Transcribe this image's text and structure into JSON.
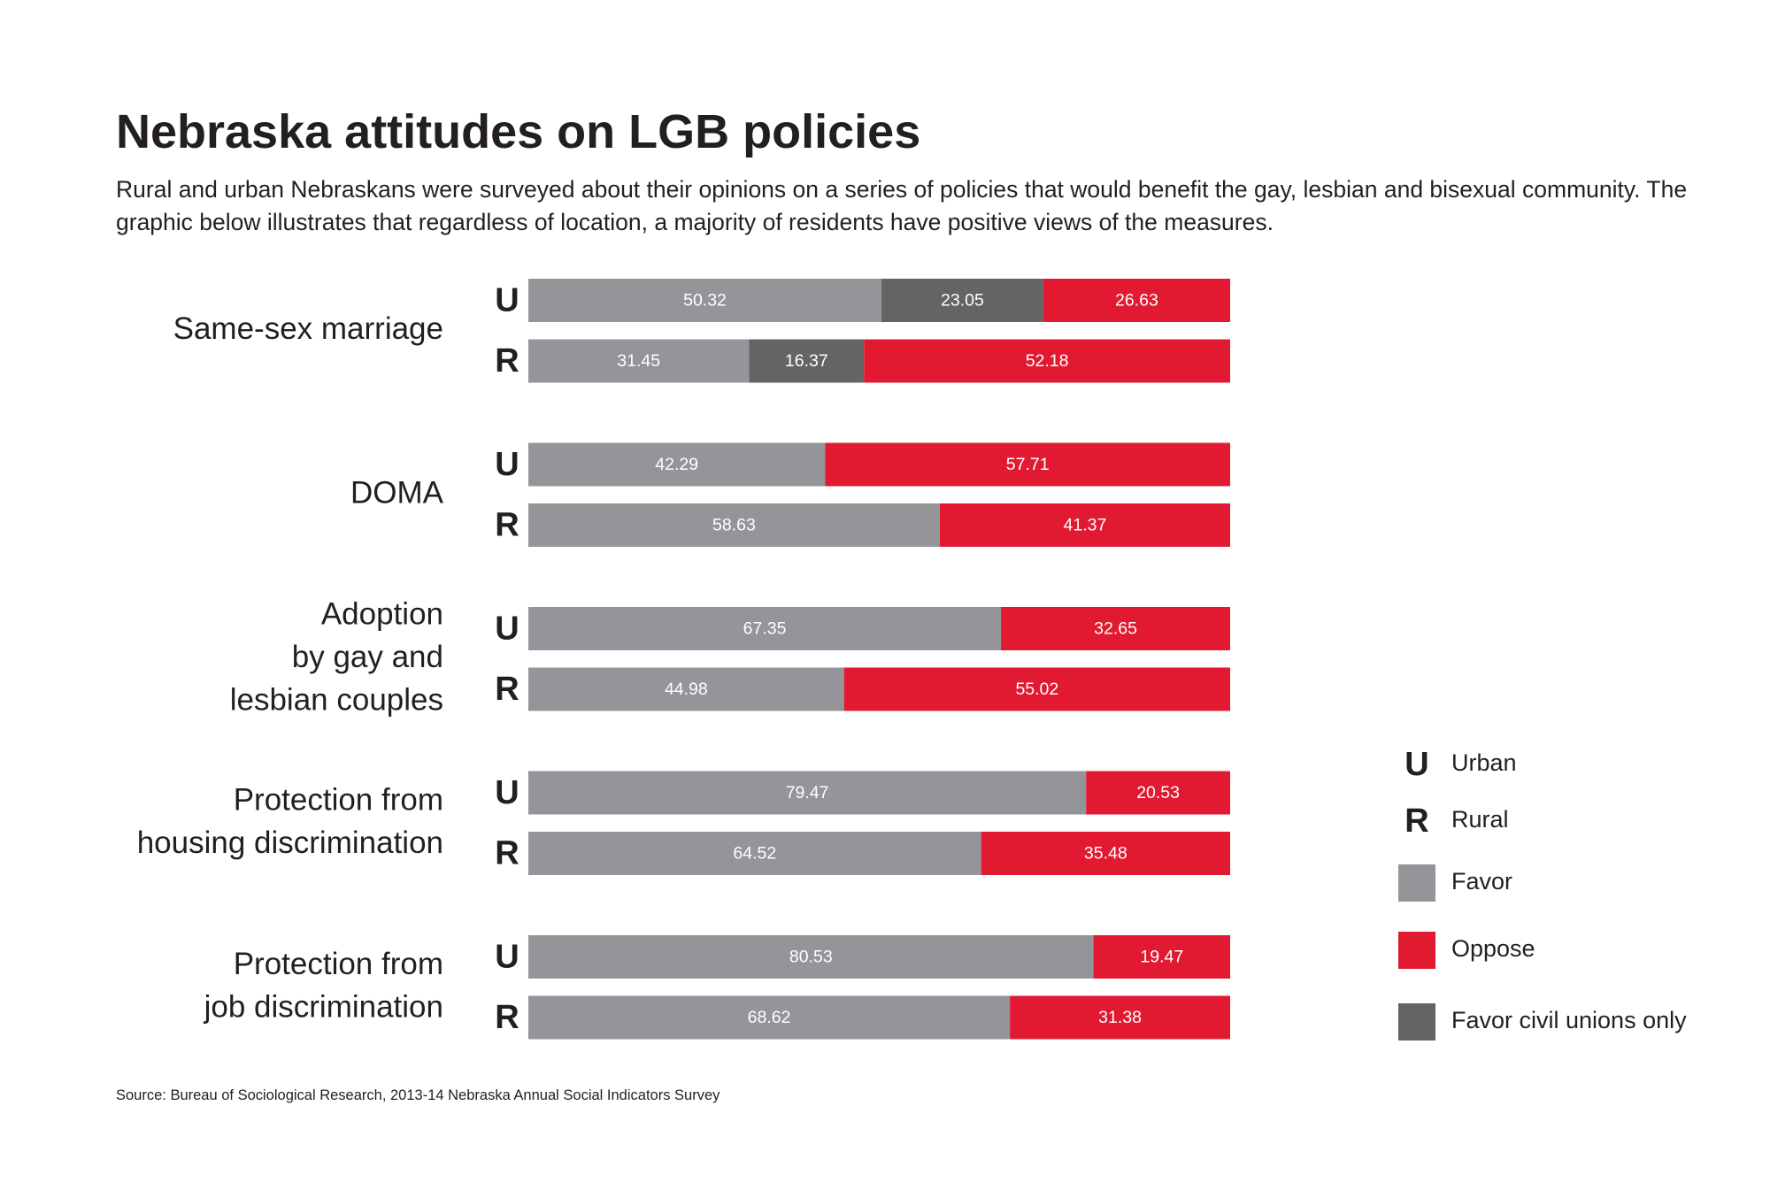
{
  "title": "Nebraska attitudes on LGB policies",
  "subtitle": "Rural and urban Nebraskans were surveyed about their opinions on a series of policies that would benefit the gay, lesbian and bisexual community. The graphic below illustrates that regardless of location, a majority of residents have positive views of the measures.",
  "source": "Source: Bureau of Sociological Research, 2013-14 Nebraska Annual Social Indicators Survey",
  "colors": {
    "favor": "#939598",
    "civil_unions": "#636466",
    "oppose": "#e11a32",
    "text": "#231f20"
  },
  "chart_data": {
    "type": "bar",
    "orientation": "horizontal",
    "stacked": true,
    "xlim": [
      0,
      100
    ],
    "series_keys": [
      "favor",
      "civil_unions",
      "oppose"
    ],
    "groups": [
      {
        "label": [
          "Same-sex marriage"
        ],
        "rows": [
          {
            "code": "U",
            "values": [
              50.32,
              23.05,
              26.63
            ]
          },
          {
            "code": "R",
            "values": [
              31.45,
              16.37,
              52.18
            ]
          }
        ]
      },
      {
        "label": [
          "DOMA"
        ],
        "rows": [
          {
            "code": "U",
            "values": [
              42.29,
              null,
              57.71
            ]
          },
          {
            "code": "R",
            "values": [
              58.63,
              null,
              41.37
            ]
          }
        ]
      },
      {
        "label": [
          "Adoption",
          "by gay and",
          "lesbian couples"
        ],
        "rows": [
          {
            "code": "U",
            "values": [
              67.35,
              null,
              32.65
            ]
          },
          {
            "code": "R",
            "values": [
              44.98,
              null,
              55.02
            ]
          }
        ]
      },
      {
        "label": [
          "Protection from",
          "housing discrimination"
        ],
        "rows": [
          {
            "code": "U",
            "values": [
              79.47,
              null,
              20.53
            ]
          },
          {
            "code": "R",
            "values": [
              64.52,
              null,
              35.48
            ]
          }
        ]
      },
      {
        "label": [
          "Protection from",
          "job discrimination"
        ],
        "rows": [
          {
            "code": "U",
            "values": [
              80.53,
              null,
              19.47
            ]
          },
          {
            "code": "R",
            "values": [
              68.62,
              null,
              31.38
            ]
          }
        ]
      }
    ],
    "legend": {
      "placement": "right",
      "codes": [
        {
          "code": "U",
          "label": "Urban"
        },
        {
          "code": "R",
          "label": "Rural"
        }
      ],
      "swatches": [
        {
          "key": "favor",
          "label": "Favor"
        },
        {
          "key": "oppose",
          "label": "Oppose"
        },
        {
          "key": "civil_unions",
          "label": "Favor civil unions only"
        }
      ]
    }
  }
}
